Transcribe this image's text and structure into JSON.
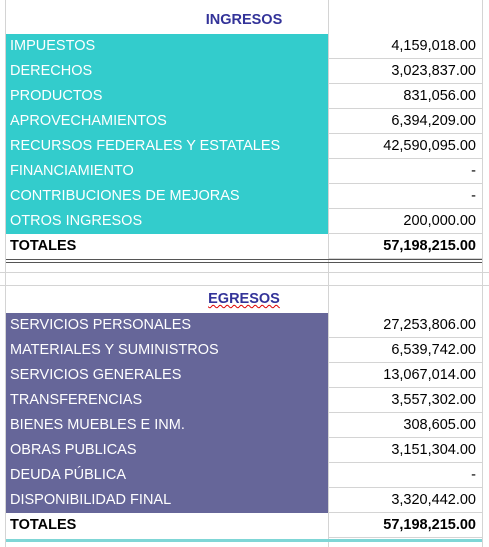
{
  "ingresos": {
    "title": "INGRESOS",
    "rows": [
      [
        "IMPUESTOS",
        "4,159,018.00"
      ],
      [
        "DERECHOS",
        "3,023,837.00"
      ],
      [
        "PRODUCTOS",
        "831,056.00"
      ],
      [
        "APROVECHAMIENTOS",
        "6,394,209.00"
      ],
      [
        "RECURSOS FEDERALES Y ESTATALES",
        "42,590,095.00"
      ],
      [
        "FINANCIAMIENTO",
        "-"
      ],
      [
        "CONTRIBUCIONES DE MEJORAS",
        "-"
      ],
      [
        "OTROS INGRESOS",
        "200,000.00"
      ]
    ],
    "total": [
      "TOTALES",
      "57,198,215.00"
    ]
  },
  "egresos": {
    "title": "EGRESOS",
    "rows": [
      [
        "SERVICIOS PERSONALES",
        "27,253,806.00"
      ],
      [
        "MATERIALES Y SUMINISTROS",
        "6,539,742.00"
      ],
      [
        "SERVICIOS GENERALES",
        "13,067,014.00"
      ],
      [
        "TRANSFERENCIAS",
        "3,557,302.00"
      ],
      [
        "BIENES MUEBLES E INM.",
        "308,605.00"
      ],
      [
        "OBRAS PUBLICAS",
        "3,151,304.00"
      ],
      [
        "DEUDA PÚBLICA",
        "-"
      ],
      [
        "DISPONIBILIDAD FINAL",
        "3,320,442.00"
      ]
    ],
    "total": [
      "TOTALES",
      "57,198,215.00"
    ]
  }
}
